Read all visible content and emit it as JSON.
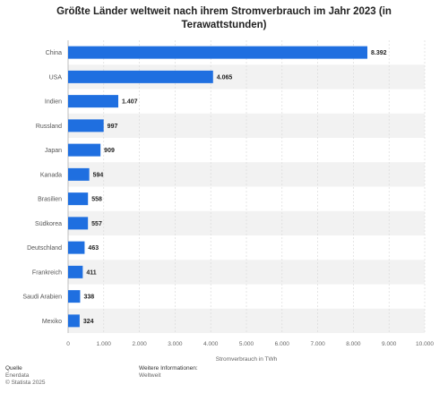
{
  "chart_data": {
    "type": "bar",
    "orientation": "horizontal",
    "title": "Größte Länder weltweit nach ihrem Stromverbrauch im Jahr 2023 (in Terawattstunden)",
    "categories": [
      "China",
      "USA",
      "Indien",
      "Russland",
      "Japan",
      "Kanada",
      "Brasilien",
      "Südkorea",
      "Deutschland",
      "Frankreich",
      "Saudi Arabien",
      "Mexiko"
    ],
    "values": [
      8392,
      4065,
      1407,
      997,
      909,
      594,
      558,
      557,
      463,
      411,
      338,
      324
    ],
    "value_labels": [
      "8.392",
      "4.065",
      "1.407",
      "997",
      "909",
      "594",
      "558",
      "557",
      "463",
      "411",
      "338",
      "324"
    ],
    "xlabel": "Stromverbrauch in TWh",
    "ylabel": "",
    "xlim": [
      0,
      10000
    ],
    "x_ticks": [
      0,
      1000,
      2000,
      3000,
      4000,
      5000,
      6000,
      7000,
      8000,
      9000,
      10000
    ],
    "x_tick_labels": [
      "0",
      "1.000",
      "2.000",
      "3.000",
      "4.000",
      "5.000",
      "6.000",
      "7.000",
      "8.000",
      "9.000",
      "10.000"
    ],
    "grid": true,
    "bar_color": "#1f6fe0",
    "stripe_color": "#f2f2f2"
  },
  "footer": {
    "source_heading": "Quelle",
    "source_lines": [
      "Enerdata",
      "© Statista 2025"
    ],
    "info_heading": "Weitere Informationen:",
    "info_lines": [
      "Weltweit"
    ]
  }
}
